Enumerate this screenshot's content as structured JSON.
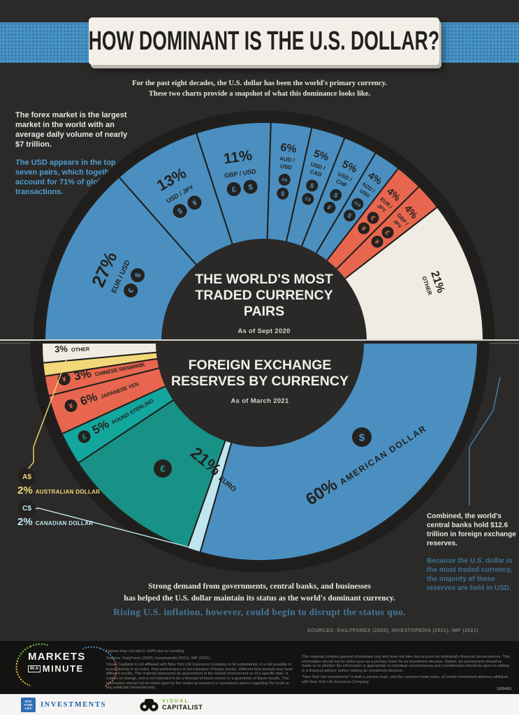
{
  "header": {
    "title": "HOW DOMINANT IS THE U.S. DOLLAR?",
    "intro1": "For the past eight decades, the U.S. dollar has been the world's primary currency.",
    "intro2": "These two charts provide a snapshot of what this dominance looks like."
  },
  "notes1": {
    "white": "The forex market is the largest market in the world with an average daily volume of nearly $7 trillion.",
    "blue": "The USD appears in the top seven pairs, which together, account for 71% of global transactions."
  },
  "notes2": {
    "white": "Combined, the world's central banks hold $12.6 trillion in foreign exchange reserves.",
    "blue": "Because the U.S. dollar is the most traded currency, the majority of these reserves are held in USD."
  },
  "chart_data": [
    {
      "type": "pie",
      "variant": "half-donut-top",
      "title": "THE WORLD'S MOST TRADED CURRENCY PAIRS",
      "subtitle": "As of Sept 2020",
      "legend_position": "on-wedge",
      "segments": [
        {
          "label": "EUR / USD",
          "lines": [
            "EUR / USD"
          ],
          "value": 27,
          "pct": "27%",
          "color": "#4a8fc0",
          "symbols": [
            "€",
            "$"
          ]
        },
        {
          "label": "USD / JPY",
          "lines": [
            "USD / JPY"
          ],
          "value": 13,
          "pct": "13%",
          "color": "#4a8fc0",
          "symbols": [
            "$",
            "¥"
          ]
        },
        {
          "label": "GBP / USD",
          "lines": [
            "GBP / USD"
          ],
          "value": 11,
          "pct": "11%",
          "color": "#4a8fc0",
          "symbols": [
            "£",
            "$"
          ]
        },
        {
          "label": "AUD / USD",
          "lines": [
            "AUD /",
            "USD"
          ],
          "value": 6,
          "pct": "6%",
          "color": "#4a8fc0",
          "symbols": [
            "A$",
            "$"
          ]
        },
        {
          "label": "USD / CAD",
          "lines": [
            "USD /",
            "CAD"
          ],
          "value": 5,
          "pct": "5%",
          "color": "#4a8fc0",
          "symbols": [
            "$",
            "C$"
          ]
        },
        {
          "label": "USD / CHF",
          "lines": [
            "USD /",
            "CHF"
          ],
          "value": 5,
          "pct": "5%",
          "color": "#4a8fc0",
          "symbols": [
            "$",
            "₣"
          ]
        },
        {
          "label": "NZD / USD",
          "lines": [
            "NZD /",
            "USD"
          ],
          "value": 4,
          "pct": "4%",
          "color": "#4a8fc0",
          "symbols": [
            "NZ$",
            "$"
          ]
        },
        {
          "label": "EUR / JPY",
          "lines": [
            "EUR /",
            "JPY"
          ],
          "value": 4,
          "pct": "4%",
          "color": "#e8664f",
          "symbols": [
            "€",
            "¥"
          ]
        },
        {
          "label": "GBP / JPY",
          "lines": [
            "GBP /",
            "JPY"
          ],
          "value": 4,
          "pct": "4%",
          "color": "#e8664f",
          "symbols": [
            "£",
            "¥"
          ]
        },
        {
          "label": "OTHER",
          "lines": [
            "OTHER"
          ],
          "value": 21,
          "pct": "21%",
          "color": "#f0ece3",
          "symbols": []
        }
      ]
    },
    {
      "type": "pie",
      "variant": "half-donut-bottom",
      "title": "FOREIGN EXCHANGE RESERVES BY CURRENCY",
      "subtitle": "As of March 2021",
      "legend_position": "on-wedge-and-callouts",
      "segments": [
        {
          "label": "OTHER",
          "value": 3,
          "pct": "3%",
          "color": "#f0ece3",
          "symbols": []
        },
        {
          "label": "AUSTRALIAN DOLLAR",
          "value": 2,
          "pct": "2%",
          "color": "#f2d878",
          "symbols": [
            "A$"
          ],
          "callout": true
        },
        {
          "label": "CHINESE RENMINBI",
          "value": 3,
          "pct": "3%",
          "color": "#e8664f",
          "symbols": [
            "¥"
          ]
        },
        {
          "label": "JAPANESE YEN",
          "value": 6,
          "pct": "6%",
          "color": "#e8664f",
          "symbols": [
            "¥"
          ]
        },
        {
          "label": "POUND STERLING",
          "value": 5,
          "pct": "5%",
          "color": "#13a69d",
          "symbols": [
            "£"
          ]
        },
        {
          "label": "EURO",
          "value": 21,
          "pct": "21%",
          "color": "#189286",
          "symbols": [
            "€"
          ]
        },
        {
          "label": "CANADIAN DOLLAR",
          "value": 2,
          "pct": "2%",
          "color": "#bfe6ef",
          "symbols": [
            "C$"
          ],
          "callout": true
        },
        {
          "label": "AMERICAN DOLLAR",
          "value": 60,
          "pct": "60%",
          "color": "#4a8fc0",
          "symbols": [
            "$"
          ]
        }
      ]
    }
  ],
  "closing": {
    "line1": "Strong demand from governments, central banks, and businesses",
    "line2": "has helped the U.S. dollar maintain its status as the world's dominant currency.",
    "blue": "Rising U.S. inflation, however, could begin to disrupt the status quo."
  },
  "sources": "SOURCES: DAILYFOREX (2020), INVESTOPEDIA (2021), IMF (2021)",
  "footer": {
    "miam": {
      "l1": "MARKETS",
      "l2a": "IN A",
      "l2b": "MINUTE"
    },
    "fine_left": {
      "l1": "Figures may not add to 100% due to rounding.",
      "l2": "Sources: DailyForex (2020), Investopedia (2021), IMF (2021).",
      "l3": "Visual Capitalist is not affiliated with New York Life Insurance Company or its subsidiaries. It is not possible to invest directly in an index. Past performance is not indicative of future results. Different time periods may have different results. This material represents an assessment of the market environment as of a specific date, is subject to change, and is not intended to be a forecast of future events or a guarantee of future results. This information should not be relied upon by the reader as research or investment advice regarding the funds or any particular issuer/security."
    },
    "fine_right": {
      "r1": "This material contains general information only and does not take into account an individual's financial circumstances. This information should not be relied upon as a primary basis for an investment decision. Rather, an assessment should be made as to whether the information is appropriate in individual circumstances and consideration should be given to talking to a financial advisor before making an investment decision.",
      "r2": "\"New York Life Investments\" is both a service mark, and the common trade name, of certain investment advisors affiliated with New York Life Insurance Company.",
      "code": "1909403"
    },
    "nyl": {
      "brand": "NEW YORK LIFE",
      "investments": "INVESTMENTS"
    },
    "vc": {
      "visual": "VISUAL",
      "capitalist": "CAPITALIST"
    }
  }
}
